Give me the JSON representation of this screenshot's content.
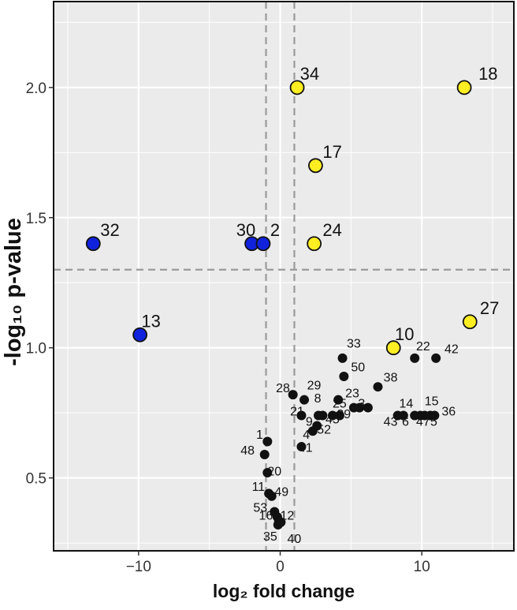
{
  "chart_data": {
    "type": "scatter",
    "xlabel": "log₂ fold change",
    "ylabel": "-log₁₀ p-value",
    "xlim": [
      -16,
      16.5
    ],
    "ylim": [
      0.22,
      2.33
    ],
    "x_ticks": [
      -10,
      0,
      10
    ],
    "x_tick_labels": [
      "−10",
      "0",
      "10"
    ],
    "y_ticks": [
      0.5,
      1.0,
      1.5,
      2.0
    ],
    "y_tick_labels": [
      "0.5",
      "1.0",
      "1.5",
      "2.0"
    ],
    "grid": true,
    "thresholds": {
      "x": [
        -1,
        1
      ],
      "y": 1.3
    },
    "colors": {
      "up": "#ffee22",
      "down": "#1122dd",
      "ns": "#111111",
      "panel": "#ebebeb",
      "threshold_line": "#9a9a9a"
    },
    "points": [
      {
        "id": "34",
        "x": 1.2,
        "y": 2.0,
        "group": "up"
      },
      {
        "id": "18",
        "x": 13.0,
        "y": 2.0,
        "group": "up"
      },
      {
        "id": "17",
        "x": 2.5,
        "y": 1.7,
        "group": "up"
      },
      {
        "id": "24",
        "x": 2.4,
        "y": 1.4,
        "group": "up"
      },
      {
        "id": "27",
        "x": 13.4,
        "y": 1.1,
        "group": "up"
      },
      {
        "id": "10",
        "x": 8.0,
        "y": 1.0,
        "group": "up"
      },
      {
        "id": "32",
        "x": -13.2,
        "y": 1.4,
        "group": "down"
      },
      {
        "id": "30",
        "x": -2.0,
        "y": 1.4,
        "group": "down"
      },
      {
        "id": "2",
        "x": -1.2,
        "y": 1.4,
        "group": "down"
      },
      {
        "id": "13",
        "x": -9.9,
        "y": 1.05,
        "group": "down"
      },
      {
        "id": "33",
        "x": 4.4,
        "y": 0.96,
        "group": "ns"
      },
      {
        "id": "22",
        "x": 9.5,
        "y": 0.96,
        "group": "ns"
      },
      {
        "id": "42",
        "x": 11.0,
        "y": 0.96,
        "group": "ns"
      },
      {
        "id": "50",
        "x": 4.5,
        "y": 0.89,
        "group": "ns"
      },
      {
        "id": "38",
        "x": 6.9,
        "y": 0.85,
        "group": "ns"
      },
      {
        "id": "28",
        "x": 0.9,
        "y": 0.82,
        "group": "ns"
      },
      {
        "id": "29",
        "x": 1.7,
        "y": 0.8,
        "group": "ns"
      },
      {
        "id": "8",
        "x": 4.1,
        "y": 0.8,
        "group": "ns"
      },
      {
        "id": "23",
        "x": 5.2,
        "y": 0.77,
        "group": "ns"
      },
      {
        "id": "3",
        "x": 5.6,
        "y": 0.77,
        "group": "ns"
      },
      {
        "id": "25",
        "x": 6.2,
        "y": 0.77,
        "group": "ns"
      },
      {
        "id": "21",
        "x": 1.5,
        "y": 0.74,
        "group": "ns"
      },
      {
        "id": "9",
        "x": 2.7,
        "y": 0.74,
        "group": "ns"
      },
      {
        "id": "52",
        "x": 3.0,
        "y": 0.74,
        "group": "ns"
      },
      {
        "id": "45",
        "x": 3.7,
        "y": 0.74,
        "group": "ns"
      },
      {
        "id": "39",
        "x": 4.2,
        "y": 0.74,
        "group": "ns"
      },
      {
        "id": "14",
        "x": 8.3,
        "y": 0.74,
        "group": "ns"
      },
      {
        "id": "43",
        "x": 8.7,
        "y": 0.74,
        "group": "ns"
      },
      {
        "id": "6",
        "x": 9.5,
        "y": 0.74,
        "group": "ns"
      },
      {
        "id": "15",
        "x": 10.2,
        "y": 0.74,
        "group": "ns"
      },
      {
        "id": "47",
        "x": 10.6,
        "y": 0.74,
        "group": "ns"
      },
      {
        "id": "5",
        "x": 10.9,
        "y": 0.74,
        "group": "ns"
      },
      {
        "id": "36",
        "x": 9.9,
        "y": 0.74,
        "group": "ns"
      },
      {
        "id": "4",
        "x": 2.3,
        "y": 0.68,
        "group": "ns"
      },
      {
        "id": "41",
        "x": 2.6,
        "y": 0.7,
        "group": "ns"
      },
      {
        "id": "1",
        "x": -0.9,
        "y": 0.64,
        "group": "ns"
      },
      {
        "id": "48",
        "x": -1.1,
        "y": 0.59,
        "group": "ns"
      },
      {
        "id": "20",
        "x": -0.9,
        "y": 0.52,
        "group": "ns"
      },
      {
        "id": "11",
        "x": -0.8,
        "y": 0.44,
        "group": "ns"
      },
      {
        "id": "49",
        "x": -0.6,
        "y": 0.43,
        "group": "ns"
      },
      {
        "id": "53",
        "x": -0.4,
        "y": 0.37,
        "group": "ns"
      },
      {
        "id": "12",
        "x": -0.2,
        "y": 0.35,
        "group": "ns"
      },
      {
        "id": "16",
        "x": -0.1,
        "y": 0.33,
        "group": "ns"
      },
      {
        "id": "35",
        "x": -0.15,
        "y": 0.32,
        "group": "ns"
      },
      {
        "id": "40",
        "x": 0.05,
        "y": 0.33,
        "group": "ns"
      },
      {
        "id": "",
        "x": 1.5,
        "y": 0.62,
        "group": "ns"
      }
    ],
    "labels": [
      {
        "text": "34",
        "x": 1.4,
        "y": 2.03
      },
      {
        "text": "18",
        "x": 14.0,
        "y": 2.03
      },
      {
        "text": "17",
        "x": 3.0,
        "y": 1.73
      },
      {
        "text": "24",
        "x": 3.0,
        "y": 1.43
      },
      {
        "text": "27",
        "x": 14.1,
        "y": 1.13
      },
      {
        "text": "10",
        "x": 8.1,
        "y": 1.03
      },
      {
        "text": "32",
        "x": -12.7,
        "y": 1.43
      },
      {
        "text": "30",
        "x": -3.1,
        "y": 1.43
      },
      {
        "text": "2",
        "x": -0.7,
        "y": 1.43
      },
      {
        "text": "13",
        "x": -9.8,
        "y": 1.08
      },
      {
        "text": "33",
        "x": 4.7,
        "y": 1.0
      },
      {
        "text": "22",
        "x": 9.6,
        "y": 0.99
      },
      {
        "text": "42",
        "x": 11.6,
        "y": 0.98
      },
      {
        "text": "50",
        "x": 5.0,
        "y": 0.91
      },
      {
        "text": "38",
        "x": 7.3,
        "y": 0.87
      },
      {
        "text": "28",
        "x": -0.3,
        "y": 0.83
      },
      {
        "text": "29",
        "x": 1.9,
        "y": 0.84
      },
      {
        "text": "8",
        "x": 2.4,
        "y": 0.79
      },
      {
        "text": "23",
        "x": 4.6,
        "y": 0.81
      },
      {
        "text": "3",
        "x": 5.5,
        "y": 0.77
      },
      {
        "text": "25",
        "x": 3.7,
        "y": 0.77
      },
      {
        "text": "21",
        "x": 0.7,
        "y": 0.74
      },
      {
        "text": "9",
        "x": 1.8,
        "y": 0.7
      },
      {
        "text": "52",
        "x": 2.6,
        "y": 0.67
      },
      {
        "text": "45",
        "x": 3.2,
        "y": 0.71
      },
      {
        "text": "39",
        "x": 4.0,
        "y": 0.73
      },
      {
        "text": "14",
        "x": 8.4,
        "y": 0.77
      },
      {
        "text": "43",
        "x": 7.3,
        "y": 0.7
      },
      {
        "text": "6",
        "x": 8.6,
        "y": 0.7
      },
      {
        "text": "15",
        "x": 10.2,
        "y": 0.78
      },
      {
        "text": "47",
        "x": 9.6,
        "y": 0.7
      },
      {
        "text": "5",
        "x": 10.6,
        "y": 0.7
      },
      {
        "text": "36",
        "x": 11.4,
        "y": 0.74
      },
      {
        "text": "4",
        "x": 1.6,
        "y": 0.65
      },
      {
        "text": "41",
        "x": 1.3,
        "y": 0.6
      },
      {
        "text": "1",
        "x": -1.7,
        "y": 0.65
      },
      {
        "text": "48",
        "x": -2.8,
        "y": 0.59
      },
      {
        "text": "20",
        "x": -0.9,
        "y": 0.51
      },
      {
        "text": "11",
        "x": -2.0,
        "y": 0.45
      },
      {
        "text": "49",
        "x": -0.4,
        "y": 0.43
      },
      {
        "text": "53",
        "x": -1.9,
        "y": 0.37
      },
      {
        "text": "12",
        "x": 0.0,
        "y": 0.34
      },
      {
        "text": "16",
        "x": -1.5,
        "y": 0.34
      },
      {
        "text": "35",
        "x": -1.2,
        "y": 0.26
      },
      {
        "text": "40",
        "x": 0.5,
        "y": 0.25
      }
    ]
  }
}
